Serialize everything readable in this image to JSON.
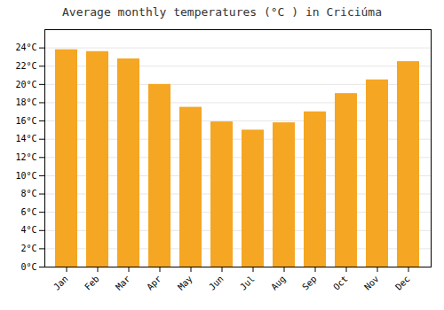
{
  "chart_data": {
    "type": "bar",
    "title": "Average monthly temperatures (°C ) in Criciúma",
    "categories": [
      "Jan",
      "Feb",
      "Mar",
      "Apr",
      "May",
      "Jun",
      "Jul",
      "Aug",
      "Sep",
      "Oct",
      "Nov",
      "Dec"
    ],
    "values": [
      23.8,
      23.6,
      22.8,
      20.0,
      17.5,
      15.9,
      15.0,
      15.8,
      17.0,
      19.0,
      20.5,
      22.5
    ],
    "color": "#F5A623",
    "ylim": [
      0,
      26
    ],
    "yticks": [
      {
        "value": 0,
        "label": "0°C"
      },
      {
        "value": 2,
        "label": "2°C"
      },
      {
        "value": 4,
        "label": "4°C"
      },
      {
        "value": 6,
        "label": "6°C"
      },
      {
        "value": 8,
        "label": "8°C"
      },
      {
        "value": 10,
        "label": "10°C"
      },
      {
        "value": 12,
        "label": "12°C"
      },
      {
        "value": 14,
        "label": "14°C"
      },
      {
        "value": 16,
        "label": "16°C"
      },
      {
        "value": 18,
        "label": "18°C"
      },
      {
        "value": 20,
        "label": "20°C"
      },
      {
        "value": 22,
        "label": "22°C"
      },
      {
        "value": 24,
        "label": "24°C"
      }
    ],
    "grid": true
  }
}
